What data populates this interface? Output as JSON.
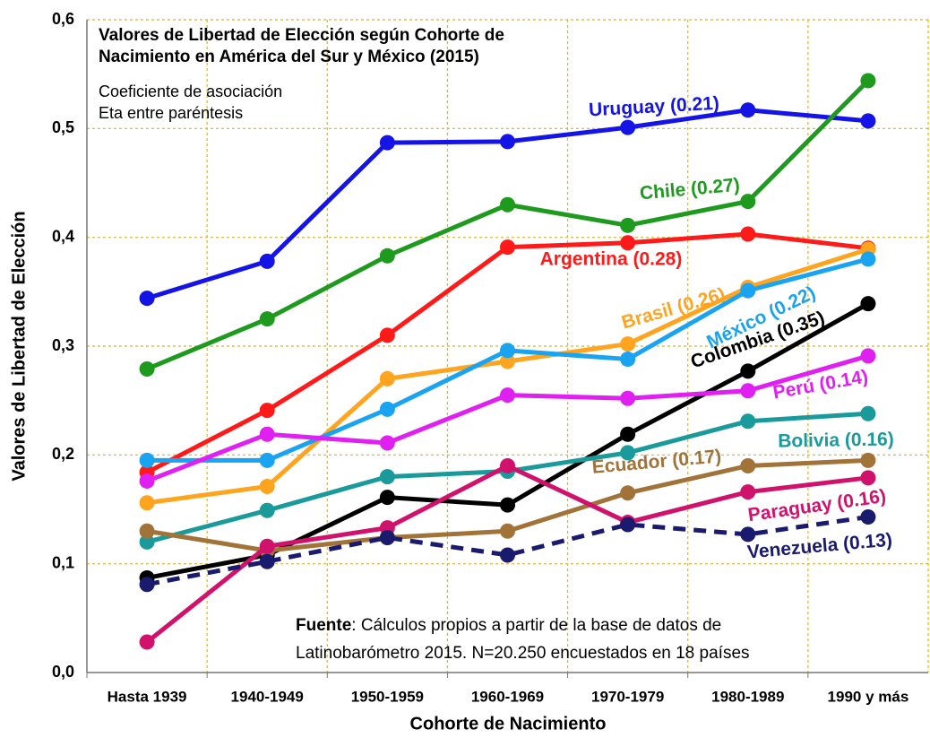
{
  "chart_data": {
    "type": "line",
    "title": [
      "Valores de Libertad de Elección según Cohorte de",
      "Nacimiento en América del Sur y México (2015)"
    ],
    "subtitle": [
      "Coeficiente de asociación",
      "Eta entre paréntesis"
    ],
    "source": {
      "label": "Fuente",
      "lines": [
        ": Cálculos propios a partir de la base de datos de",
        "Latinobarómetro 2015. N=20.250 encuestados en 18 países"
      ]
    },
    "x_label": "Cohorte de Nacimiento",
    "y_label": "Valores de Libertad de Elección",
    "categories": [
      "Hasta 1939",
      "1940-1949",
      "1950-1959",
      "1960-1969",
      "1970-1979",
      "1980-1989",
      "1990 y más"
    ],
    "ylim": [
      0,
      0.6
    ],
    "yticks": [
      {
        "value": 0,
        "label": "0,0"
      },
      {
        "value": 0.1,
        "label": "0,1"
      },
      {
        "value": 0.2,
        "label": "0,2"
      },
      {
        "value": 0.3,
        "label": "0,3"
      },
      {
        "value": 0.4,
        "label": "0,4"
      },
      {
        "value": 0.5,
        "label": "0,5"
      },
      {
        "value": 0.6,
        "label": "0,6"
      }
    ],
    "grid": true,
    "series": [
      {
        "name": "Uruguay (0.21)",
        "color": "#1414e6",
        "values": [
          0.344,
          0.378,
          0.487,
          0.488,
          0.501,
          0.517,
          0.507
        ]
      },
      {
        "name": "Chile (0.27)",
        "color": "#1e9b1e",
        "values": [
          0.279,
          0.325,
          0.383,
          0.43,
          0.411,
          0.433,
          0.544
        ]
      },
      {
        "name": "Argentina (0.28)",
        "color": "#ff1a1a",
        "values": [
          0.184,
          0.241,
          0.31,
          0.391,
          0.395,
          0.403,
          0.39
        ]
      },
      {
        "name": "Brasil (0.26)",
        "color": "#ffa41f",
        "values": [
          0.156,
          0.171,
          0.27,
          0.286,
          0.302,
          0.354,
          0.389
        ]
      },
      {
        "name": "México (0.22)",
        "color": "#1aa3f0",
        "values": [
          0.195,
          0.195,
          0.242,
          0.296,
          0.288,
          0.351,
          0.38
        ]
      },
      {
        "name": "Colombia (0.35)",
        "color": "#000000",
        "values": [
          0.087,
          0.108,
          0.161,
          0.154,
          0.219,
          0.277,
          0.339
        ]
      },
      {
        "name": "Perú (0.14)",
        "color": "#e020f0",
        "values": [
          0.176,
          0.219,
          0.211,
          0.255,
          0.252,
          0.259,
          0.291
        ]
      },
      {
        "name": "Bolivia (0.16)",
        "color": "#1a9a9a",
        "values": [
          0.12,
          0.149,
          0.18,
          0.185,
          0.202,
          0.231,
          0.238
        ]
      },
      {
        "name": "Ecuador (0.17)",
        "color": "#a27339",
        "values": [
          0.13,
          0.112,
          0.124,
          0.13,
          0.165,
          0.19,
          0.195
        ]
      },
      {
        "name": "Paraguay (0.16)",
        "color": "#d0126c",
        "values": [
          0.028,
          0.116,
          0.133,
          0.19,
          0.138,
          0.166,
          0.179
        ]
      },
      {
        "name": "Venezuela (0.13)",
        "color": "#1a1a6e",
        "dash": true,
        "values": [
          0.081,
          0.102,
          0.124,
          0.108,
          0.136,
          0.127,
          0.143
        ]
      }
    ]
  }
}
